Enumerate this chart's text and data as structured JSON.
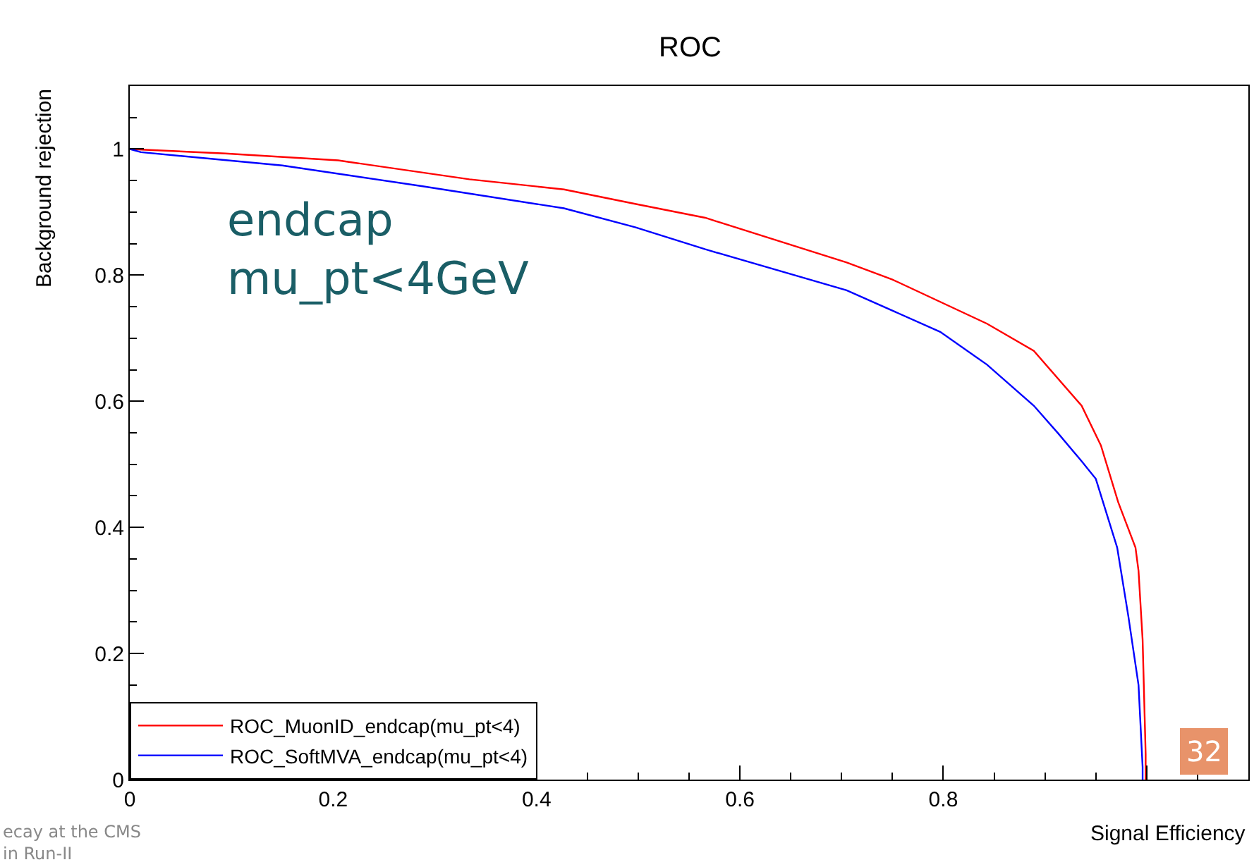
{
  "chart_data": {
    "type": "line",
    "title": "ROC",
    "xlabel": "Signal Efficiency",
    "ylabel": "Background rejection",
    "xlim": [
      0,
      1.1
    ],
    "xticks": [
      0,
      0.2,
      0.4,
      0.6,
      0.8,
      {
        "value": 1.0,
        "label": null
      }
    ],
    "ylim": [
      0,
      1.1
    ],
    "yticks": [
      0,
      0.2,
      0.4,
      0.6,
      0.8,
      1
    ],
    "legend": "bottom left",
    "marker": "none",
    "line_style": "solid",
    "series": [
      {
        "name": "ROC_MuonID_endcap(mu_pt<4)",
        "color": "#ff0000",
        "x": [
          0,
          0.094,
          0.205,
          0.334,
          0.427,
          0.497,
          0.566,
          0.705,
          0.75,
          0.843,
          0.889,
          0.936,
          0.955,
          0.972,
          0.989,
          0.992,
          0.996,
          0.999,
          0.999
        ],
        "values": [
          1.0,
          0.993,
          0.982,
          0.952,
          0.936,
          0.913,
          0.891,
          0.82,
          0.793,
          0.723,
          0.68,
          0.593,
          0.53,
          0.44,
          0.368,
          0.331,
          0.222,
          0.04,
          0
        ]
      },
      {
        "name": "ROC_SoftMVA_endcap(mu_pt<4)",
        "color": "#0000ff",
        "x": [
          0,
          0.011,
          0.15,
          0.288,
          0.427,
          0.497,
          0.566,
          0.705,
          0.797,
          0.843,
          0.889,
          0.913,
          0.936,
          0.95,
          0.971,
          0.982,
          0.992,
          0.996,
          0.996
        ],
        "values": [
          1.0,
          0.995,
          0.974,
          0.941,
          0.906,
          0.876,
          0.841,
          0.776,
          0.71,
          0.658,
          0.593,
          0.549,
          0.505,
          0.477,
          0.368,
          0.259,
          0.15,
          0.02,
          0
        ]
      }
    ],
    "annotations": [
      "endcap\nmu_pt<4GeV",
      "ecay at the CMS\nin Run-II",
      "32"
    ]
  }
}
